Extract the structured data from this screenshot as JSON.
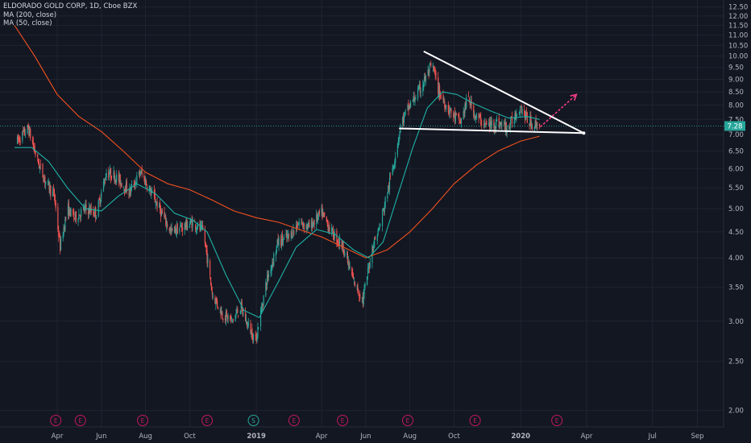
{
  "legend": {
    "symbol_line": "ELDORADO GOLD CORP, 1D, Cboe BZX",
    "ma200_label": "MA (200, close)",
    "ma50_label": "MA (50, close)"
  },
  "price_badge": "7.28",
  "colors": {
    "background": "#131722",
    "grid": "#1f2430",
    "up": "#26a69a",
    "down": "#ef5350",
    "ma200": "#f4511e",
    "ma50": "#1eb2a6",
    "trendline": "#ffffff",
    "arrow": "#ff3d8b",
    "badge": "#26a69a",
    "event_red": "#c2185b",
    "event_teal": "#26a69a"
  },
  "chart_data": {
    "type": "candlestick",
    "title": "ELDORADO GOLD CORP, 1D, Cboe BZX",
    "y_scale": "log",
    "ylim": [
      1.95,
      12.6
    ],
    "y_ticks": [
      "12.50",
      "12.00",
      "11.50",
      "11.00",
      "10.50",
      "10.00",
      "9.50",
      "9.00",
      "8.50",
      "8.00",
      "7.50",
      "7.00",
      "6.50",
      "6.00",
      "5.50",
      "5.00",
      "4.50",
      "4.00",
      "3.50",
      "3.00",
      "2.50",
      "2.00"
    ],
    "x_ticks": [
      "Apr",
      "Jun",
      "Aug",
      "Oct",
      "2019",
      "Apr",
      "Jun",
      "Aug",
      "Oct",
      "2020",
      "Apr",
      "Jul",
      "Sep"
    ],
    "x_tick_dates": [
      "2018-04-01",
      "2018-06-01",
      "2018-08-01",
      "2018-10-01",
      "2019-01-01",
      "2019-04-01",
      "2019-06-01",
      "2019-08-01",
      "2019-10-01",
      "2020-01-01",
      "2020-04-01",
      "2020-07-01",
      "2020-09-01"
    ],
    "last_price": 7.28,
    "price_path": [
      [
        "2018-02-05",
        6.8
      ],
      [
        "2018-02-20",
        7.2
      ],
      [
        "2018-03-05",
        6.2
      ],
      [
        "2018-03-15",
        5.7
      ],
      [
        "2018-03-28",
        5.3
      ],
      [
        "2018-04-05",
        4.2
      ],
      [
        "2018-04-15",
        5.0
      ],
      [
        "2018-04-25",
        4.8
      ],
      [
        "2018-05-10",
        5.0
      ],
      [
        "2018-05-25",
        4.9
      ],
      [
        "2018-06-08",
        5.9
      ],
      [
        "2018-06-20",
        5.8
      ],
      [
        "2018-07-10",
        5.4
      ],
      [
        "2018-07-25",
        5.9
      ],
      [
        "2018-08-08",
        5.4
      ],
      [
        "2018-08-20",
        5.0
      ],
      [
        "2018-09-05",
        4.5
      ],
      [
        "2018-09-20",
        4.6
      ],
      [
        "2018-10-05",
        4.7
      ],
      [
        "2018-10-20",
        4.5
      ],
      [
        "2018-11-01",
        3.4
      ],
      [
        "2018-11-15",
        3.1
      ],
      [
        "2018-11-28",
        3.0
      ],
      [
        "2018-12-10",
        3.2
      ],
      [
        "2018-12-20",
        2.95
      ],
      [
        "2018-12-31",
        2.75
      ],
      [
        "2019-01-15",
        3.6
      ],
      [
        "2019-01-31",
        4.3
      ],
      [
        "2019-02-15",
        4.4
      ],
      [
        "2019-03-01",
        4.7
      ],
      [
        "2019-03-15",
        4.6
      ],
      [
        "2019-04-01",
        4.9
      ],
      [
        "2019-04-15",
        4.5
      ],
      [
        "2019-05-01",
        4.2
      ],
      [
        "2019-05-15",
        3.6
      ],
      [
        "2019-05-28",
        3.3
      ],
      [
        "2019-06-10",
        4.2
      ],
      [
        "2019-06-20",
        4.6
      ],
      [
        "2019-07-01",
        5.4
      ],
      [
        "2019-07-10",
        6.2
      ],
      [
        "2019-07-20",
        7.4
      ],
      [
        "2019-08-01",
        8.0
      ],
      [
        "2019-08-15",
        8.6
      ],
      [
        "2019-08-25",
        9.2
      ],
      [
        "2019-09-01",
        9.6
      ],
      [
        "2019-09-10",
        8.5
      ],
      [
        "2019-09-20",
        8.0
      ],
      [
        "2019-10-01",
        7.6
      ],
      [
        "2019-10-10",
        7.4
      ],
      [
        "2019-10-20",
        8.3
      ],
      [
        "2019-10-31",
        7.6
      ],
      [
        "2019-11-15",
        7.3
      ],
      [
        "2019-11-30",
        7.4
      ],
      [
        "2019-12-15",
        7.2
      ],
      [
        "2019-12-31",
        8.0
      ],
      [
        "2020-01-10",
        7.5
      ],
      [
        "2020-01-20",
        7.3
      ],
      [
        "2020-01-27",
        7.4
      ]
    ],
    "series": [
      {
        "name": "MA (200, close)",
        "points": [
          [
            "2018-02-01",
            11.5
          ],
          [
            "2018-03-01",
            10.0
          ],
          [
            "2018-04-01",
            8.4
          ],
          [
            "2018-05-01",
            7.6
          ],
          [
            "2018-06-01",
            7.1
          ],
          [
            "2018-07-01",
            6.5
          ],
          [
            "2018-08-01",
            5.9
          ],
          [
            "2018-09-01",
            5.6
          ],
          [
            "2018-10-01",
            5.45
          ],
          [
            "2018-11-01",
            5.2
          ],
          [
            "2018-12-01",
            4.95
          ],
          [
            "2019-01-01",
            4.8
          ],
          [
            "2019-02-01",
            4.7
          ],
          [
            "2019-03-01",
            4.55
          ],
          [
            "2019-04-01",
            4.4
          ],
          [
            "2019-05-01",
            4.2
          ],
          [
            "2019-06-01",
            4.0
          ],
          [
            "2019-07-01",
            4.15
          ],
          [
            "2019-08-01",
            4.5
          ],
          [
            "2019-09-01",
            5.0
          ],
          [
            "2019-10-01",
            5.6
          ],
          [
            "2019-11-01",
            6.1
          ],
          [
            "2019-12-01",
            6.5
          ],
          [
            "2020-01-01",
            6.8
          ],
          [
            "2020-01-27",
            6.95
          ]
        ]
      },
      {
        "name": "MA (50, close)",
        "points": [
          [
            "2018-02-01",
            6.6
          ],
          [
            "2018-02-25",
            6.6
          ],
          [
            "2018-03-20",
            6.2
          ],
          [
            "2018-04-15",
            5.5
          ],
          [
            "2018-05-10",
            5.0
          ],
          [
            "2018-06-01",
            4.95
          ],
          [
            "2018-06-25",
            5.3
          ],
          [
            "2018-07-20",
            5.6
          ],
          [
            "2018-08-15",
            5.35
          ],
          [
            "2018-09-10",
            4.9
          ],
          [
            "2018-10-05",
            4.75
          ],
          [
            "2018-10-25",
            4.5
          ],
          [
            "2018-11-20",
            3.7
          ],
          [
            "2018-12-15",
            3.15
          ],
          [
            "2019-01-05",
            3.05
          ],
          [
            "2019-02-01",
            3.6
          ],
          [
            "2019-02-25",
            4.2
          ],
          [
            "2019-03-25",
            4.55
          ],
          [
            "2019-04-20",
            4.45
          ],
          [
            "2019-05-15",
            4.15
          ],
          [
            "2019-06-05",
            4.0
          ],
          [
            "2019-06-25",
            4.3
          ],
          [
            "2019-07-15",
            5.3
          ],
          [
            "2019-08-05",
            6.6
          ],
          [
            "2019-08-25",
            7.9
          ],
          [
            "2019-09-15",
            8.5
          ],
          [
            "2019-10-05",
            8.4
          ],
          [
            "2019-10-25",
            8.1
          ],
          [
            "2019-11-20",
            7.8
          ],
          [
            "2019-12-15",
            7.55
          ],
          [
            "2020-01-10",
            7.6
          ],
          [
            "2020-01-27",
            7.5
          ]
        ]
      }
    ],
    "annotations": {
      "upper_trendline": [
        [
          "2019-08-20",
          10.22
        ],
        [
          "2020-03-28",
          7.05
        ]
      ],
      "lower_trendline": [
        [
          "2019-07-17",
          7.2
        ],
        [
          "2020-03-28",
          7.05
        ]
      ],
      "breakout_arrow": [
        [
          "2020-01-28",
          7.25
        ],
        [
          "2020-03-18",
          8.4
        ]
      ]
    },
    "events": [
      {
        "date": "2018-03-30",
        "label": "E",
        "kind": "earnings"
      },
      {
        "date": "2018-05-03",
        "label": "E",
        "kind": "earnings"
      },
      {
        "date": "2018-07-28",
        "label": "E",
        "kind": "earnings"
      },
      {
        "date": "2018-10-25",
        "label": "E",
        "kind": "earnings"
      },
      {
        "date": "2018-12-28",
        "label": "S",
        "kind": "split"
      },
      {
        "date": "2019-02-22",
        "label": "E",
        "kind": "earnings"
      },
      {
        "date": "2019-04-30",
        "label": "E",
        "kind": "earnings"
      },
      {
        "date": "2019-07-29",
        "label": "E",
        "kind": "earnings"
      },
      {
        "date": "2019-10-30",
        "label": "E",
        "kind": "earnings"
      },
      {
        "date": "2020-02-20",
        "label": "E",
        "kind": "earnings"
      }
    ]
  }
}
